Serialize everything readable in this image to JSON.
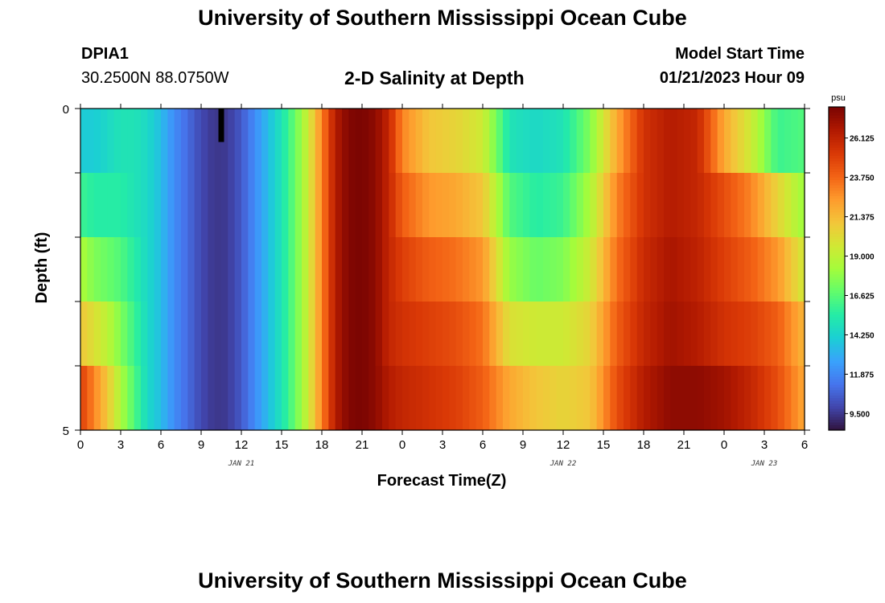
{
  "header": {
    "title": "University of Southern Mississippi Ocean Cube",
    "station": "DPIA1",
    "coords": "30.2500N  88.0750W",
    "subtitle": "2-D Salinity at Depth",
    "start_label": "Model Start Time",
    "start_value": "01/21/2023 Hour 09"
  },
  "footer": {
    "title": "University of Southern Mississippi Ocean Cube"
  },
  "chart_data": {
    "type": "heatmap",
    "title": "2-D Salinity at Depth",
    "xlabel": "Forecast Time(Z)",
    "ylabel": "Depth (ft)",
    "x_tick_labels": [
      "0",
      "3",
      "6",
      "9",
      "12",
      "15",
      "18",
      "21",
      "0",
      "3",
      "6",
      "9",
      "12",
      "15",
      "18",
      "21",
      "0",
      "3",
      "6"
    ],
    "x_date_labels": [
      {
        "label": "JAN 21",
        "at_tick": 4
      },
      {
        "label": "JAN 22",
        "at_tick": 12
      },
      {
        "label": "JAN 23",
        "at_tick": 17
      }
    ],
    "y_tick_labels": [
      "0",
      "5"
    ],
    "ylim": [
      0,
      5
    ],
    "hours_range": [
      0,
      54
    ],
    "depth_rows": 5,
    "colorbar": {
      "unit": "psu",
      "min": 8.5,
      "max": 28.0,
      "tick_labels": [
        "26.125",
        "23.750",
        "21.375",
        "19.000",
        "16.625",
        "14.250",
        "11.875",
        "9.500"
      ],
      "colors": [
        "#30123b",
        "#4145ab",
        "#4675ed",
        "#39a2fc",
        "#1bcfd4",
        "#24eca6",
        "#61fc6c",
        "#a4fc3b",
        "#d1e834",
        "#f3c63a",
        "#fe9b2d",
        "#f36315",
        "#d93806",
        "#b11901",
        "#7a0402"
      ]
    },
    "profile_hours": [
      0,
      1,
      2,
      3,
      4,
      5,
      6,
      7,
      8,
      9,
      10,
      11,
      12,
      13,
      14,
      15,
      16,
      17,
      18,
      19,
      20,
      21,
      22,
      23,
      24,
      26,
      28,
      30,
      32,
      34,
      36,
      38,
      40,
      42,
      44,
      46,
      48,
      50,
      52,
      54
    ],
    "profile_values": [
      [
        14.0,
        14.0,
        14.5,
        15.0,
        15.0,
        14.5,
        13.5,
        12.0,
        11.0,
        10.0,
        9.5,
        9.6,
        10.5,
        12.0,
        13.5,
        15.0,
        17.0,
        19.5,
        23.0,
        26.5,
        27.8,
        28.0,
        27.5,
        26.0,
        23.0,
        21.0,
        20.5,
        19.5,
        15.0,
        14.5,
        15.0,
        17.5,
        22.0,
        25.5,
        26.5,
        26.0,
        22.0,
        19.5,
        16.0,
        16.5
      ],
      [
        16.0,
        15.5,
        15.5,
        15.5,
        15.0,
        14.5,
        13.5,
        12.0,
        11.0,
        10.0,
        9.5,
        9.6,
        10.5,
        12.0,
        13.5,
        15.0,
        17.0,
        19.5,
        23.0,
        26.5,
        27.8,
        28.0,
        27.5,
        26.0,
        24.0,
        22.5,
        22.0,
        21.0,
        16.5,
        15.5,
        16.0,
        18.5,
        23.0,
        25.5,
        26.5,
        26.0,
        24.5,
        23.0,
        20.5,
        18.0
      ],
      [
        18.5,
        17.5,
        17.0,
        16.5,
        15.5,
        14.5,
        13.5,
        12.0,
        11.0,
        10.0,
        9.5,
        9.6,
        10.5,
        12.0,
        13.5,
        15.0,
        17.0,
        19.5,
        23.0,
        26.5,
        27.8,
        28.0,
        27.5,
        26.0,
        25.0,
        24.0,
        23.5,
        22.5,
        18.0,
        17.0,
        17.5,
        19.5,
        23.5,
        25.8,
        26.8,
        26.2,
        25.0,
        24.0,
        22.5,
        19.5
      ],
      [
        21.0,
        20.0,
        19.0,
        17.5,
        16.0,
        14.5,
        13.5,
        12.0,
        11.0,
        10.0,
        9.5,
        9.6,
        10.5,
        12.0,
        13.5,
        15.0,
        17.0,
        19.5,
        23.0,
        26.5,
        27.8,
        28.0,
        27.5,
        26.0,
        25.5,
        25.0,
        24.5,
        23.5,
        20.0,
        19.5,
        19.5,
        20.5,
        24.0,
        26.0,
        27.0,
        26.5,
        25.5,
        25.0,
        24.0,
        21.5
      ],
      [
        25.0,
        23.0,
        21.0,
        18.5,
        16.5,
        14.5,
        13.5,
        12.0,
        11.0,
        10.0,
        9.5,
        9.6,
        10.5,
        12.0,
        13.5,
        15.0,
        17.0,
        19.5,
        23.0,
        26.5,
        27.8,
        28.0,
        27.5,
        26.5,
        26.0,
        25.5,
        25.0,
        24.0,
        22.0,
        21.0,
        20.5,
        21.0,
        24.5,
        26.5,
        27.5,
        27.5,
        27.0,
        26.0,
        24.5,
        22.0
      ]
    ],
    "missing_marker": {
      "hour": 10.5,
      "depth_row": 0
    }
  }
}
